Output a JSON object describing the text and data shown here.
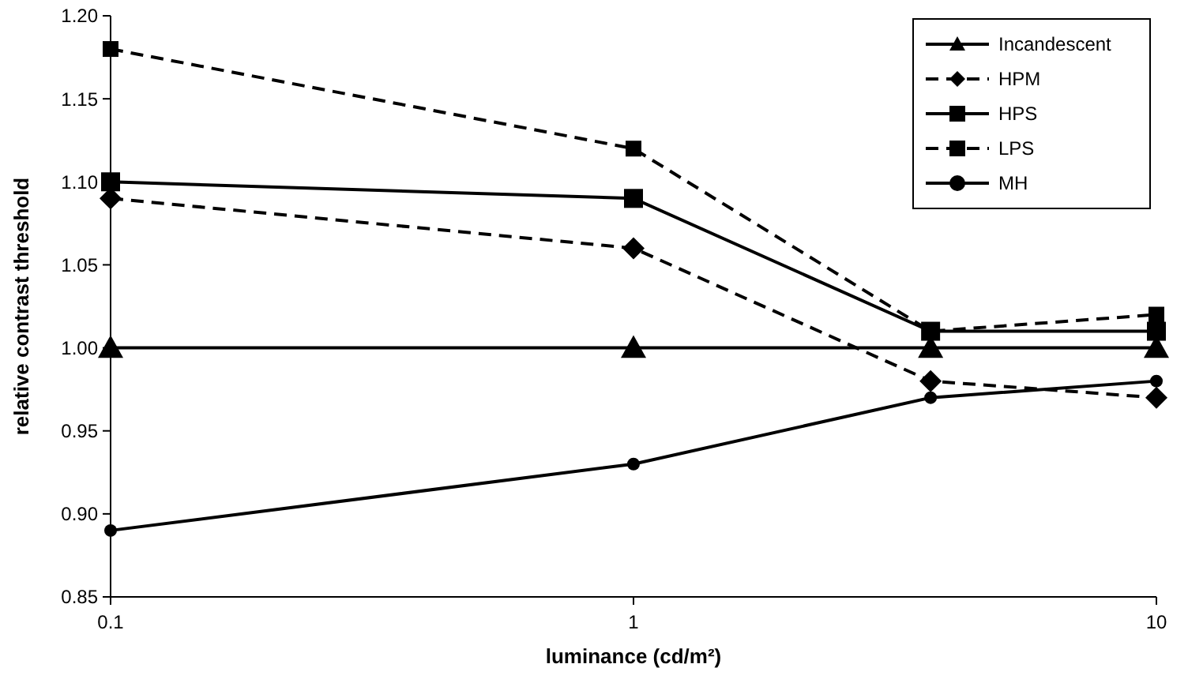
{
  "chart_data": {
    "type": "line",
    "xlabel": "luminance (cd/m²)",
    "ylabel": "relative contrast threshold",
    "x": [
      0.1,
      1,
      3.7,
      10
    ],
    "log": "x",
    "xlim": [
      0.1,
      10
    ],
    "xticks": [
      0.1,
      1,
      10
    ],
    "ylim": [
      0.85,
      1.2
    ],
    "yticks": [
      {
        "value": 0.85,
        "label": "0.85"
      },
      {
        "value": 0.9,
        "label": "0.90"
      },
      {
        "value": 0.95,
        "label": "0.95"
      },
      {
        "value": 1,
        "label": "1.00"
      },
      {
        "value": 1.05,
        "label": "1.05"
      },
      {
        "value": 1.1,
        "label": "1.10"
      },
      {
        "value": 1.15,
        "label": "1.15"
      },
      {
        "value": 1.2,
        "label": "1.20"
      }
    ],
    "grid": false,
    "legend": "top right",
    "series": [
      {
        "name": "Incandescent",
        "color": "#000000",
        "marker": "triangle",
        "line_style": "solid",
        "values": [
          1.0,
          1.0,
          1.0,
          1.0
        ]
      },
      {
        "name": "HPM",
        "color": "#000000",
        "marker": "diamond",
        "line_style": "dashed",
        "values": [
          1.09,
          1.06,
          0.98,
          0.97
        ]
      },
      {
        "name": "HPS",
        "color": "#000000",
        "marker": "square",
        "line_style": "solid",
        "values": [
          1.1,
          1.09,
          1.01,
          1.01
        ]
      },
      {
        "name": "LPS",
        "color": "#000000",
        "marker": "square",
        "line_style": "dashed",
        "values": [
          1.18,
          1.12,
          1.01,
          1.02
        ]
      },
      {
        "name": "MH",
        "color": "#000000",
        "marker": "circle",
        "line_style": "solid",
        "values": [
          0.89,
          0.93,
          0.97,
          0.98
        ]
      }
    ]
  }
}
